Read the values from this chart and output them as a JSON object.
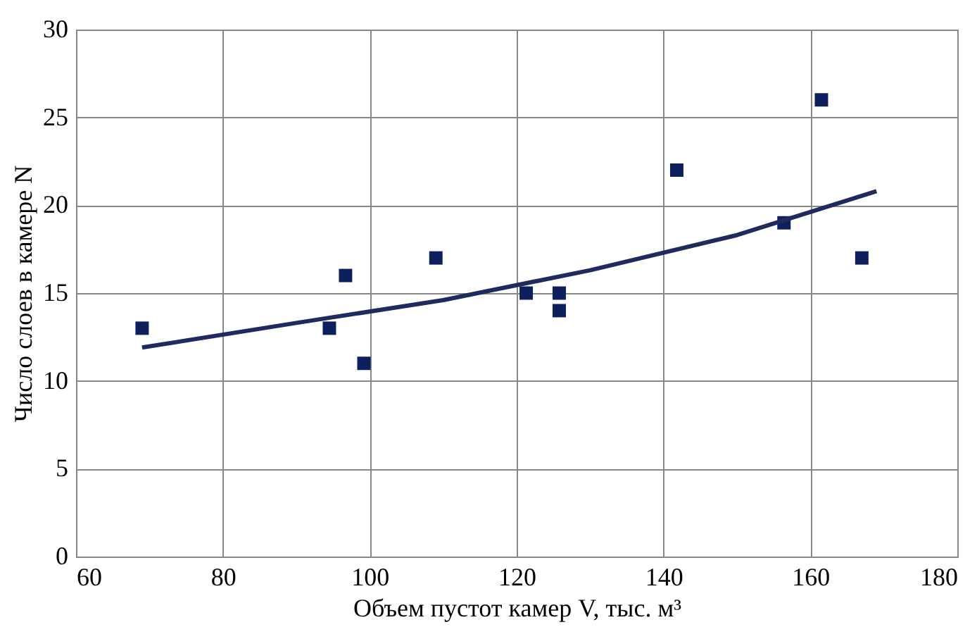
{
  "chart_data": {
    "type": "scatter",
    "xlabel": "Объем пустот камер V, тыс. м³",
    "ylabel": "Число слоев в камере N",
    "xlim": [
      60,
      180
    ],
    "xticks": [
      60,
      80,
      100,
      120,
      140,
      160,
      180
    ],
    "ylim": [
      0,
      30
    ],
    "yticks": [
      0,
      5,
      10,
      15,
      20,
      25,
      30
    ],
    "grid": true,
    "marker": "square",
    "series": [
      {
        "color": "#0d1f5c",
        "x": [
          69,
          94.5,
          96.7,
          99.2,
          109,
          121.3,
          125.8,
          125.8,
          141.8,
          156.4,
          161.5,
          167
        ],
        "values": [
          13,
          13,
          16,
          11,
          17,
          15,
          15,
          14,
          22,
          19,
          26,
          17
        ]
      },
      {
        "type": "line",
        "marker": "none",
        "color": "#1f2a5e",
        "x": [
          69,
          90,
          110,
          130,
          150,
          169
        ],
        "values": [
          11.9,
          13.3,
          14.6,
          16.3,
          18.3,
          20.8
        ]
      }
    ]
  }
}
